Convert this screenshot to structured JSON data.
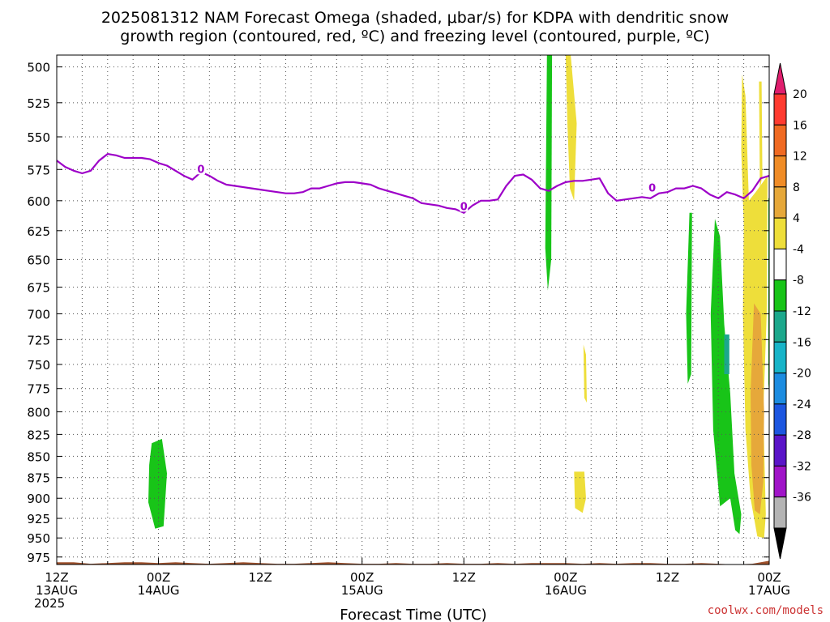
{
  "chart_data": {
    "type": "heatmap",
    "title_lines": [
      "2025081312 NAM Forecast Omega (shaded, μbar/s) for KDPA with dendritic snow",
      "growth region (contoured, red, ºC) and freezing level (contoured, purple, ºC)"
    ],
    "xlabel": "Forecast Time (UTC)",
    "credit": "coolwx.com/models",
    "y_axis": {
      "scale": "pressure",
      "range": [
        985,
        492
      ],
      "ticks": [
        "500",
        "525",
        "550",
        "575",
        "600",
        "625",
        "650",
        "675",
        "700",
        "725",
        "750",
        "775",
        "800",
        "825",
        "850",
        "875",
        "900",
        "925",
        "950",
        "975"
      ]
    },
    "x_axis": {
      "range_hours": [
        0,
        84
      ],
      "ticks": [
        {
          "hour": 0,
          "line1": "12Z",
          "line2": "13AUG",
          "line3": "2025"
        },
        {
          "hour": 12,
          "line1": "00Z",
          "line2": "14AUG",
          "line3": ""
        },
        {
          "hour": 24,
          "line1": "12Z",
          "line2": "",
          "line3": ""
        },
        {
          "hour": 36,
          "line1": "00Z",
          "line2": "15AUG",
          "line3": ""
        },
        {
          "hour": 48,
          "line1": "12Z",
          "line2": "",
          "line3": ""
        },
        {
          "hour": 60,
          "line1": "00Z",
          "line2": "16AUG",
          "line3": ""
        },
        {
          "hour": 72,
          "line1": "12Z",
          "line2": "",
          "line3": ""
        },
        {
          "hour": 84,
          "line1": "00Z",
          "line2": "17AUG",
          "line3": ""
        }
      ]
    },
    "grid": true,
    "colorbar": {
      "labels": [
        "20",
        "16",
        "12",
        "8",
        "4",
        "-4",
        "-8",
        "-12",
        "-16",
        "-20",
        "-24",
        "-28",
        "-32",
        "-36"
      ],
      "colors": [
        "#e01e6e",
        "#ff3b30",
        "#f06a22",
        "#f08c26",
        "#e6a83a",
        "#eede3a",
        "#ffffff",
        "#18c418",
        "#1ca88c",
        "#18b4c8",
        "#1c8ce0",
        "#1c56e0",
        "#5a14c8",
        "#a014c8",
        "#b4b4b4",
        "#000000"
      ]
    },
    "omega_regions": [
      {
        "name": "green-14aug",
        "color": "#18c418",
        "points": [
          [
            11.2,
            835
          ],
          [
            12.4,
            830
          ],
          [
            13.0,
            870
          ],
          [
            12.6,
            935
          ],
          [
            11.6,
            938
          ],
          [
            10.8,
            905
          ],
          [
            10.9,
            860
          ]
        ]
      },
      {
        "name": "green-15aug-column",
        "color": "#18c418",
        "points": [
          [
            57.8,
            492
          ],
          [
            58.4,
            492
          ],
          [
            58.3,
            650
          ],
          [
            57.9,
            678
          ],
          [
            57.6,
            640
          ]
        ]
      },
      {
        "name": "yellow-16aug-column",
        "color": "#eede3a",
        "points": [
          [
            60.0,
            492
          ],
          [
            60.6,
            492
          ],
          [
            61.3,
            540
          ],
          [
            61.0,
            600
          ],
          [
            60.5,
            590
          ],
          [
            60.2,
            540
          ]
        ]
      },
      {
        "name": "yellow-16aug-small",
        "color": "#eede3a",
        "points": [
          [
            62.1,
            730
          ],
          [
            62.4,
            740
          ],
          [
            62.5,
            790
          ],
          [
            62.2,
            785
          ]
        ]
      },
      {
        "name": "yellow-16aug-low",
        "color": "#eede3a",
        "points": [
          [
            61.0,
            868
          ],
          [
            62.2,
            868
          ],
          [
            62.4,
            900
          ],
          [
            62.0,
            918
          ],
          [
            61.1,
            912
          ]
        ]
      },
      {
        "name": "green-16aug-slab1",
        "color": "#18c418",
        "points": [
          [
            74.6,
            610
          ],
          [
            74.9,
            610
          ],
          [
            74.8,
            760
          ],
          [
            74.4,
            770
          ],
          [
            74.2,
            700
          ]
        ]
      },
      {
        "name": "green-16aug-main",
        "color": "#18c418",
        "points": [
          [
            77.6,
            615
          ],
          [
            78.2,
            630
          ],
          [
            78.7,
            710
          ],
          [
            79.4,
            780
          ],
          [
            79.9,
            870
          ],
          [
            80.7,
            920
          ],
          [
            80.5,
            945
          ],
          [
            80.0,
            940
          ],
          [
            79.4,
            900
          ],
          [
            78.2,
            910
          ],
          [
            77.4,
            820
          ],
          [
            77.1,
            700
          ]
        ]
      },
      {
        "name": "yellow-17aug-main",
        "color": "#eede3a",
        "points": [
          [
            80.8,
            505
          ],
          [
            81.2,
            520
          ],
          [
            81.6,
            600
          ],
          [
            82.4,
            593
          ],
          [
            83.8,
            580
          ],
          [
            83.7,
            700
          ],
          [
            83.3,
            800
          ],
          [
            83.6,
            920
          ],
          [
            83.4,
            950
          ],
          [
            82.6,
            948
          ],
          [
            81.8,
            900
          ],
          [
            81.2,
            820
          ],
          [
            80.9,
            700
          ],
          [
            81.0,
            620
          ],
          [
            80.7,
            560
          ]
        ]
      },
      {
        "name": "orange-17aug-core",
        "color": "#e6a83a",
        "points": [
          [
            82.2,
            690
          ],
          [
            83.0,
            700
          ],
          [
            83.4,
            800
          ],
          [
            83.3,
            880
          ],
          [
            82.9,
            920
          ],
          [
            82.3,
            915
          ],
          [
            81.9,
            860
          ],
          [
            81.8,
            780
          ]
        ]
      },
      {
        "name": "yellow-17aug-top",
        "color": "#eede3a",
        "points": [
          [
            82.8,
            510
          ],
          [
            83.1,
            510
          ],
          [
            83.2,
            580
          ],
          [
            82.9,
            590
          ]
        ]
      },
      {
        "name": "teal-17aug-spot",
        "color": "#1ca88c",
        "points": [
          [
            78.7,
            720
          ],
          [
            79.3,
            720
          ],
          [
            79.3,
            760
          ],
          [
            78.7,
            760
          ]
        ]
      },
      {
        "name": "green-17aug-edge",
        "color": "#18c418",
        "points": [
          [
            83.9,
            598
          ],
          [
            84.0,
            598
          ],
          [
            84.0,
            780
          ],
          [
            83.9,
            770
          ]
        ]
      }
    ],
    "freezing_level": {
      "label": "0",
      "label_points": [
        [
          17.0,
          575
        ],
        [
          48.0,
          605
        ],
        [
          70.2,
          590
        ]
      ],
      "points": [
        [
          0,
          568
        ],
        [
          1,
          573
        ],
        [
          2,
          576
        ],
        [
          3,
          578
        ],
        [
          4,
          576
        ],
        [
          5,
          568
        ],
        [
          6,
          563
        ],
        [
          7,
          564
        ],
        [
          8,
          566
        ],
        [
          9,
          566
        ],
        [
          10,
          566
        ],
        [
          11,
          567
        ],
        [
          12,
          570
        ],
        [
          13,
          572
        ],
        [
          14,
          576
        ],
        [
          15,
          580
        ],
        [
          16,
          583
        ],
        [
          17,
          577
        ],
        [
          18,
          580
        ],
        [
          19,
          584
        ],
        [
          20,
          587
        ],
        [
          21,
          588
        ],
        [
          22,
          589
        ],
        [
          23,
          590
        ],
        [
          24,
          591
        ],
        [
          25,
          592
        ],
        [
          26,
          593
        ],
        [
          27,
          594
        ],
        [
          28,
          594
        ],
        [
          29,
          593
        ],
        [
          30,
          590
        ],
        [
          31,
          590
        ],
        [
          32,
          588
        ],
        [
          33,
          586
        ],
        [
          34,
          585
        ],
        [
          35,
          585
        ],
        [
          36,
          586
        ],
        [
          37,
          587
        ],
        [
          38,
          590
        ],
        [
          39,
          592
        ],
        [
          40,
          594
        ],
        [
          41,
          596
        ],
        [
          42,
          598
        ],
        [
          43,
          602
        ],
        [
          44,
          603
        ],
        [
          45,
          604
        ],
        [
          46,
          606
        ],
        [
          47,
          607
        ],
        [
          48,
          610
        ],
        [
          49,
          604
        ],
        [
          50,
          600
        ],
        [
          51,
          600
        ],
        [
          52,
          599
        ],
        [
          53,
          588
        ],
        [
          54,
          580
        ],
        [
          55,
          579
        ],
        [
          56,
          583
        ],
        [
          57,
          590
        ],
        [
          58,
          592
        ],
        [
          59,
          588
        ],
        [
          60,
          585
        ],
        [
          61,
          584
        ],
        [
          62,
          584
        ],
        [
          63,
          583
        ],
        [
          64,
          582
        ],
        [
          65,
          594
        ],
        [
          66,
          600
        ],
        [
          67,
          599
        ],
        [
          68,
          598
        ],
        [
          69,
          597
        ],
        [
          70,
          598
        ],
        [
          71,
          594
        ],
        [
          72,
          593
        ],
        [
          73,
          590
        ],
        [
          74,
          590
        ],
        [
          75,
          588
        ],
        [
          76,
          590
        ],
        [
          77,
          595
        ],
        [
          78,
          598
        ],
        [
          79,
          593
        ],
        [
          80,
          595
        ],
        [
          81,
          598
        ],
        [
          82,
          592
        ],
        [
          83,
          582
        ],
        [
          84,
          580
        ]
      ]
    },
    "terrain": {
      "color": "#a0522d",
      "top_points": [
        [
          0,
          982
        ],
        [
          2,
          982
        ],
        [
          4,
          984
        ],
        [
          6,
          983
        ],
        [
          8,
          982
        ],
        [
          10,
          982
        ],
        [
          12,
          983
        ],
        [
          14,
          982
        ],
        [
          16,
          983
        ],
        [
          18,
          984
        ],
        [
          20,
          983
        ],
        [
          22,
          982
        ],
        [
          24,
          983
        ],
        [
          26,
          984
        ],
        [
          28,
          984
        ],
        [
          30,
          983
        ],
        [
          32,
          982
        ],
        [
          34,
          983
        ],
        [
          36,
          984
        ],
        [
          38,
          984
        ],
        [
          40,
          983
        ],
        [
          42,
          984
        ],
        [
          44,
          984
        ],
        [
          46,
          983
        ],
        [
          48,
          984
        ],
        [
          50,
          984
        ],
        [
          52,
          983
        ],
        [
          54,
          984
        ],
        [
          56,
          983
        ],
        [
          58,
          983
        ],
        [
          60,
          983
        ],
        [
          62,
          984
        ],
        [
          64,
          983
        ],
        [
          66,
          984
        ],
        [
          68,
          983
        ],
        [
          70,
          983
        ],
        [
          72,
          984
        ],
        [
          74,
          984
        ],
        [
          76,
          983
        ],
        [
          78,
          984
        ],
        [
          80,
          985
        ],
        [
          82,
          984
        ],
        [
          84,
          980
        ]
      ]
    }
  }
}
